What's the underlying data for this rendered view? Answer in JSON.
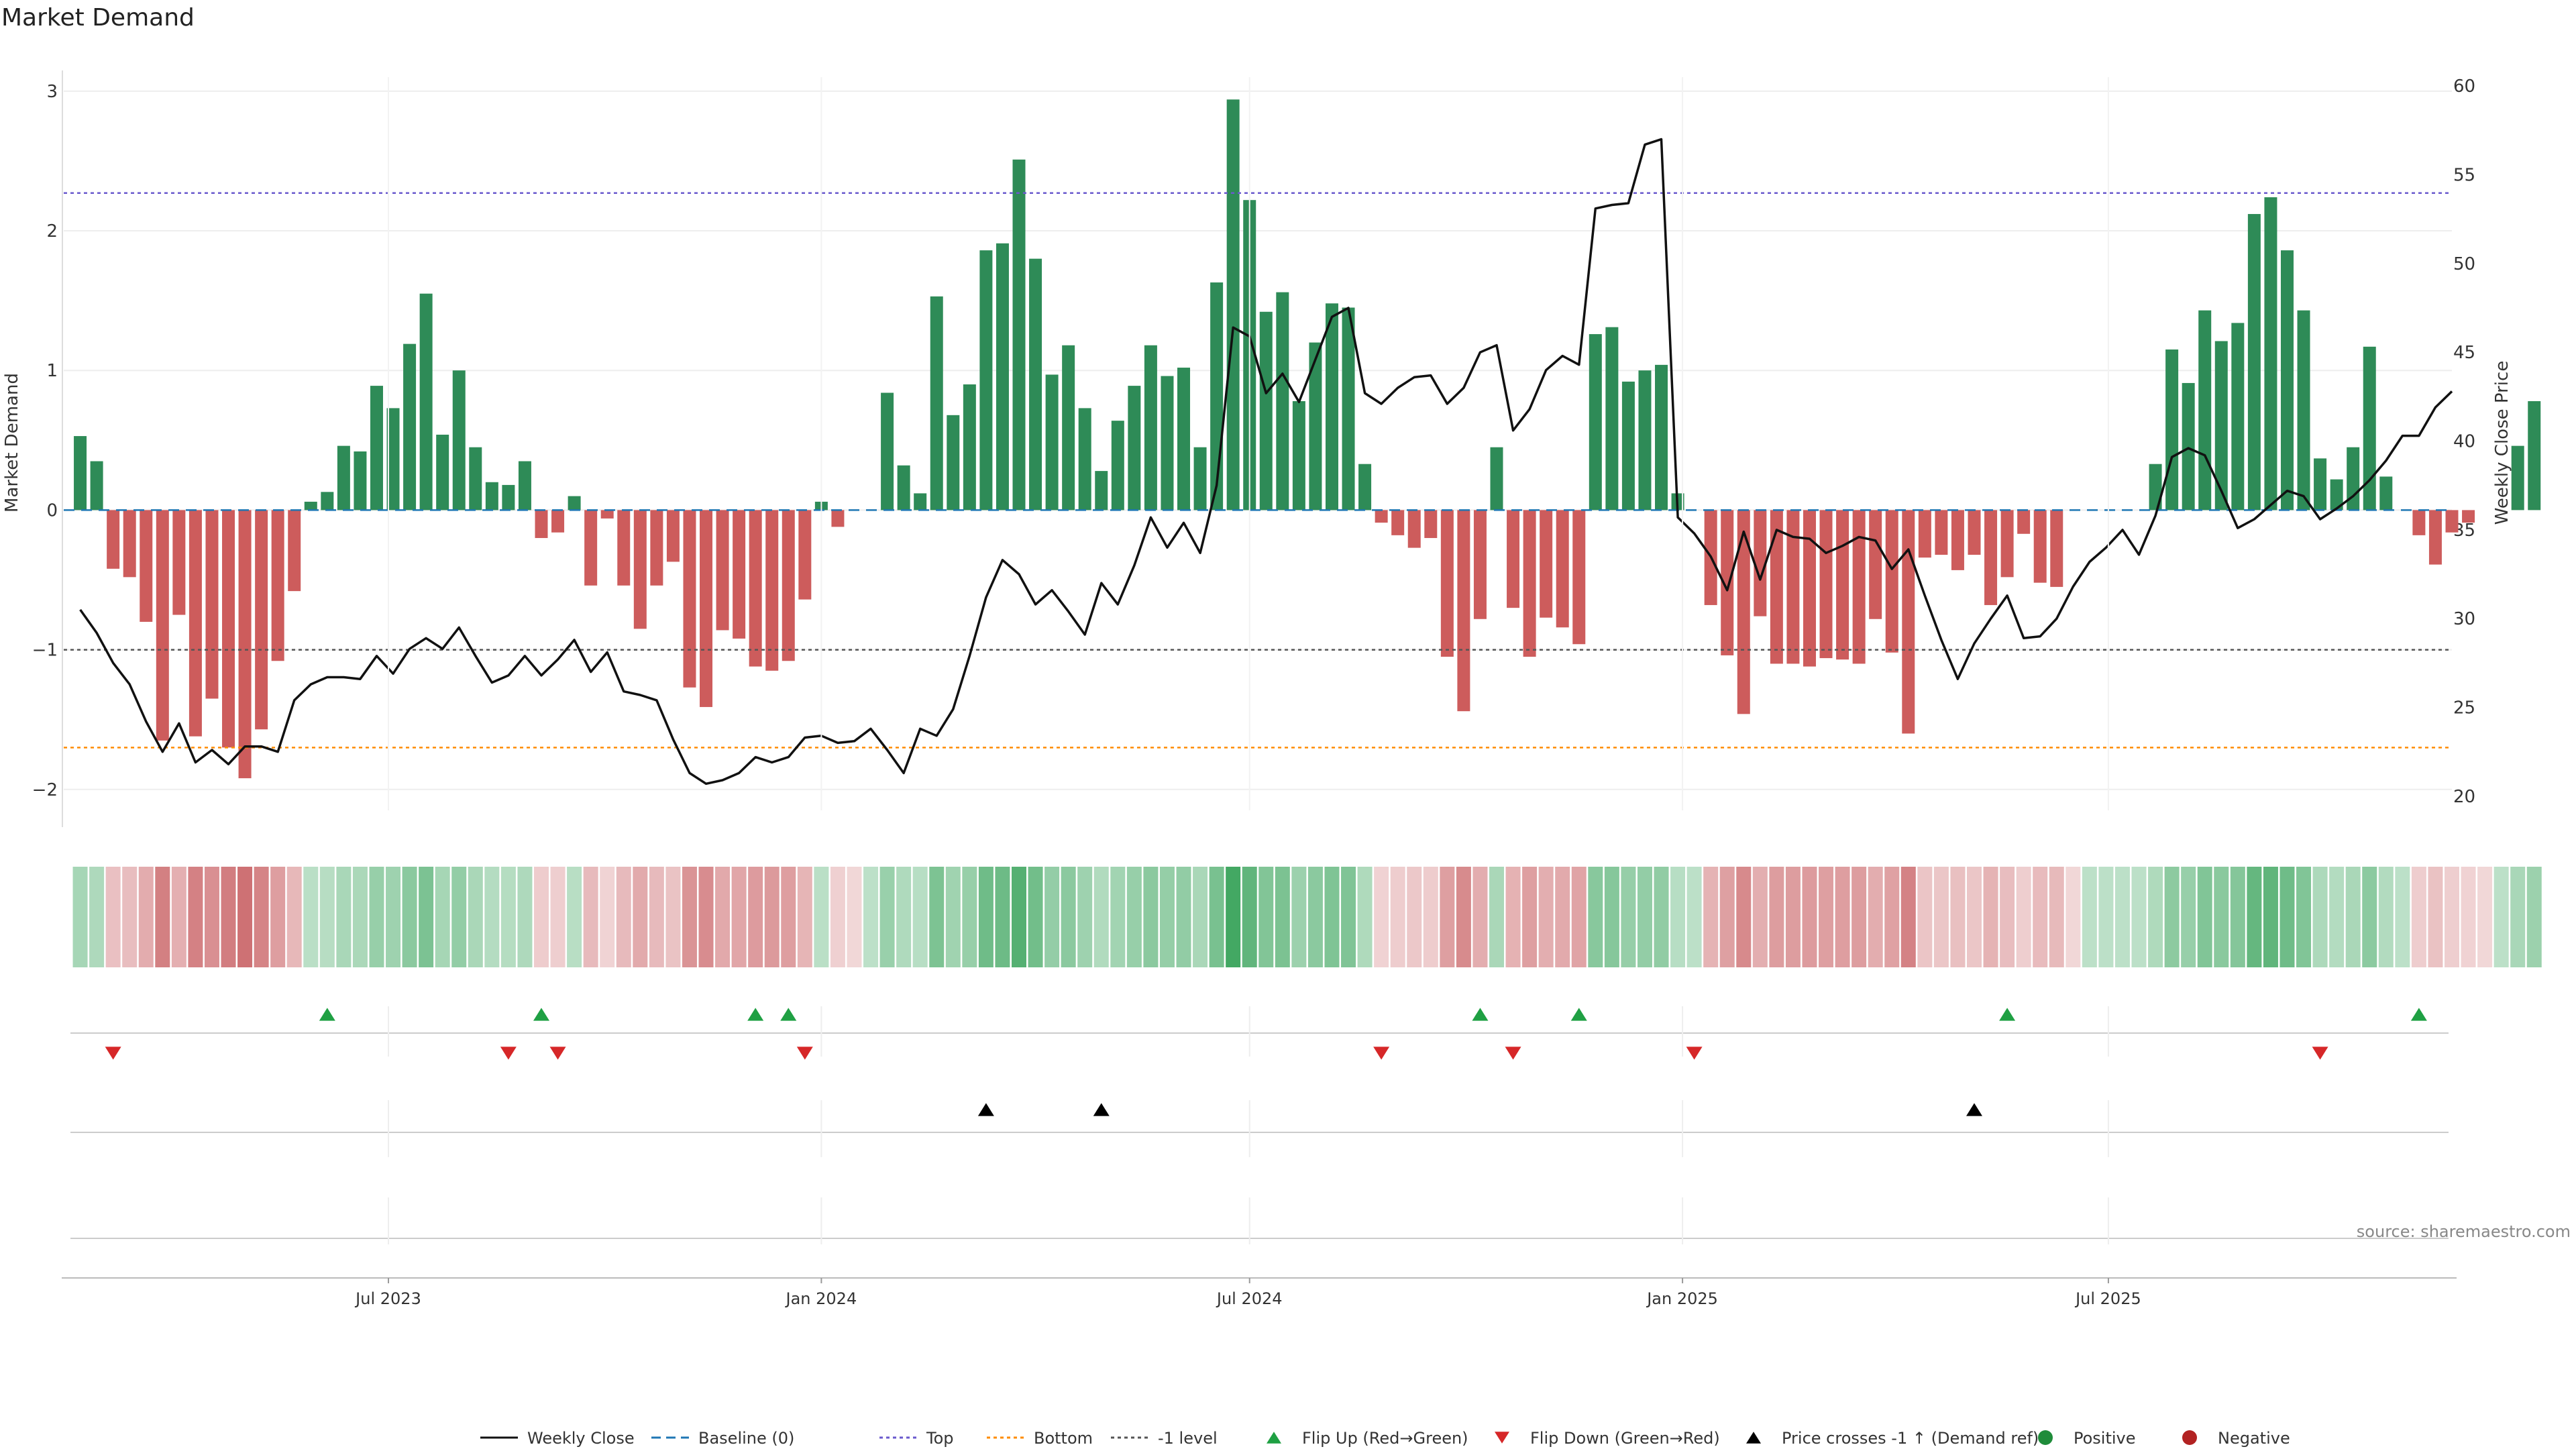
{
  "chart_data": {
    "title": "Market Demand",
    "type": "bar",
    "x_axis": {
      "type": "date",
      "tick_labels": [
        "Jul 2023",
        "Jan 2024",
        "Jul 2024",
        "Jan 2025",
        "Jul 2025"
      ],
      "tick_dates": [
        "2023-07-01",
        "2024-01-01",
        "2024-07-01",
        "2025-01-01",
        "2025-07-01"
      ],
      "range": [
        "2023-02-13",
        "2025-11-24"
      ]
    },
    "y_left": {
      "label": "Market Demand",
      "ticks": [
        -2,
        -1,
        0,
        1,
        2,
        3
      ],
      "range": [
        -2.15,
        3.1
      ]
    },
    "y_right": {
      "label": "Weekly Close Price",
      "ticks": [
        20,
        25,
        30,
        35,
        40,
        45,
        50,
        55,
        60
      ],
      "range": [
        19.2,
        60.5
      ]
    },
    "reference_lines": {
      "top": 2.27,
      "bottom": -1.7,
      "minus_one": -1
    },
    "colors": {
      "positive": "#2e8b57",
      "negative": "#cd5c5c",
      "price_line": "#111111",
      "top_line": "#6a5acd",
      "bottom_line": "#ff8c00",
      "minus_one_line": "#555555",
      "baseline": "#1f77b4",
      "flip_up": "#1fa043",
      "flip_down": "#d62728",
      "cross": "#000000",
      "positive_dot": "#1f8c3a",
      "negative_dot": "#b22222"
    },
    "weeks": {
      "start": "2023-02-20",
      "step_days": 7,
      "demand": [
        0.53,
        0.35,
        -0.42,
        -0.48,
        -0.8,
        -1.65,
        -0.75,
        -1.62,
        -1.35,
        -1.7,
        -1.92,
        -1.57,
        -1.08,
        -0.58,
        0.06,
        0.13,
        0.46,
        0.42,
        0.89,
        0.73,
        1.19,
        1.55,
        0.54,
        1.0,
        0.45,
        0.2,
        0.18,
        0.35,
        -0.2,
        -0.16,
        0.1,
        -0.54,
        -0.06,
        -0.54,
        -0.85,
        -0.54,
        -0.37,
        -1.27,
        -1.41,
        -0.86,
        -0.92,
        -1.12,
        -1.15,
        -1.08,
        -0.64,
        0.06,
        -0.12,
        0.0,
        0.0,
        0.84,
        0.32,
        0.12,
        1.53,
        0.68,
        0.9,
        1.86,
        1.91,
        2.51,
        1.8,
        0.97,
        1.18,
        0.73,
        0.28,
        0.64,
        0.89,
        1.18,
        0.96,
        1.02,
        0.45,
        1.63,
        2.94,
        2.22,
        1.42,
        1.56,
        0.78,
        1.2,
        1.48,
        1.45,
        0.33,
        -0.09,
        -0.18,
        -0.27,
        -0.2,
        -1.05,
        -1.44,
        -0.78,
        0.45,
        -0.7,
        -1.05,
        -0.77,
        -0.84,
        -0.96,
        1.26,
        1.31,
        0.92,
        1.0,
        1.04,
        0.12,
        0.0,
        -0.68,
        -1.04,
        -1.46,
        -0.76,
        -1.1,
        -1.1,
        -1.12,
        -1.06,
        -1.07,
        -1.1,
        -0.78,
        -1.02,
        -1.6,
        -0.34,
        -0.32,
        -0.43,
        -0.32,
        -0.68,
        -0.48,
        -0.17,
        -0.52,
        -0.55,
        0.0,
        0.0,
        0.0,
        0.0,
        0.0,
        0.33,
        1.15,
        0.91,
        1.43,
        1.21,
        1.34,
        2.12,
        2.24,
        1.86,
        1.43,
        0.37,
        0.22,
        0.45,
        1.17,
        0.24,
        0.0,
        -0.18,
        -0.39,
        -0.16,
        -0.09,
        0.0,
        0.0,
        0.46,
        0.78
      ],
      "close": [
        30.5,
        29.2,
        27.5,
        26.3,
        24.2,
        22.5,
        24.1,
        21.9,
        22.6,
        21.8,
        22.8,
        22.8,
        22.5,
        25.4,
        26.3,
        26.7,
        26.7,
        26.6,
        27.9,
        26.9,
        28.3,
        28.9,
        28.3,
        29.5,
        27.9,
        26.4,
        26.8,
        27.9,
        26.8,
        27.7,
        28.8,
        27.0,
        28.1,
        25.9,
        25.7,
        25.4,
        23.2,
        21.3,
        20.7,
        20.9,
        21.3,
        22.2,
        21.9,
        22.2,
        23.3,
        23.4,
        23.0,
        23.1,
        23.8,
        22.6,
        21.3,
        23.8,
        23.4,
        24.9,
        27.9,
        31.2,
        33.3,
        32.5,
        30.8,
        31.6,
        30.4,
        29.1,
        32.0,
        30.8,
        33.0,
        35.7,
        34.0,
        35.4,
        33.7,
        37.5,
        46.4,
        45.9,
        42.7,
        43.8,
        42.2,
        44.6,
        47.0,
        47.5,
        42.7,
        42.1,
        43.0,
        43.6,
        43.7,
        42.1,
        43.0,
        45.0,
        45.4,
        40.6,
        41.8,
        44.0,
        44.8,
        44.3,
        53.1,
        53.3,
        53.4,
        56.7,
        57.0,
        35.7,
        34.8,
        33.5,
        31.6,
        34.9,
        32.2,
        35.0,
        34.6,
        34.5,
        33.7,
        34.1,
        34.6,
        34.4,
        32.8,
        33.9,
        31.3,
        28.8,
        26.6,
        28.6,
        30.0,
        31.3,
        28.9,
        29.0,
        30.0,
        31.8,
        33.2,
        34.0,
        35.0,
        33.6,
        35.8,
        39.1,
        39.6,
        39.2,
        37.2,
        35.1,
        35.6,
        36.4,
        37.2,
        36.9,
        35.6,
        36.2,
        36.9,
        37.8,
        38.9,
        40.3,
        40.3,
        41.9,
        42.8
      ]
    },
    "heatmap_strip": {
      "description_levels": "color intensity by demand sign and magnitude"
    },
    "flip_up_dates": [
      "2023-06-05",
      "2023-09-04",
      "2023-12-04",
      "2023-12-18",
      "2024-10-07",
      "2024-11-18",
      "2025-05-19",
      "2025-11-10"
    ],
    "flip_down_dates": [
      "2023-03-06",
      "2023-08-21",
      "2023-09-11",
      "2023-12-25",
      "2024-08-26",
      "2024-10-21",
      "2025-01-06",
      "2025-09-29"
    ],
    "cross_up_dates": [
      "2024-03-11",
      "2024-04-29",
      "2025-05-05"
    ],
    "legend": [
      {
        "label": "Weekly Close",
        "key": "line-solid"
      },
      {
        "label": "Baseline (0)",
        "key": "line-dash-blue"
      },
      {
        "label": "Top",
        "key": "line-dot-purple"
      },
      {
        "label": "Bottom",
        "key": "line-dot-orange"
      },
      {
        "label": "-1 level",
        "key": "line-dot-gray"
      },
      {
        "label": "Flip Up (Red→Green)",
        "key": "tri-up-green"
      },
      {
        "label": "Flip Down (Green→Red)",
        "key": "tri-down-red"
      },
      {
        "label": "Price crosses -1 ↑ (Demand ref)",
        "key": "tri-up-black"
      },
      {
        "label": "Positive",
        "key": "dot-green"
      },
      {
        "label": "Negative",
        "key": "dot-red"
      }
    ],
    "source": "source: sharemaestro.com"
  }
}
